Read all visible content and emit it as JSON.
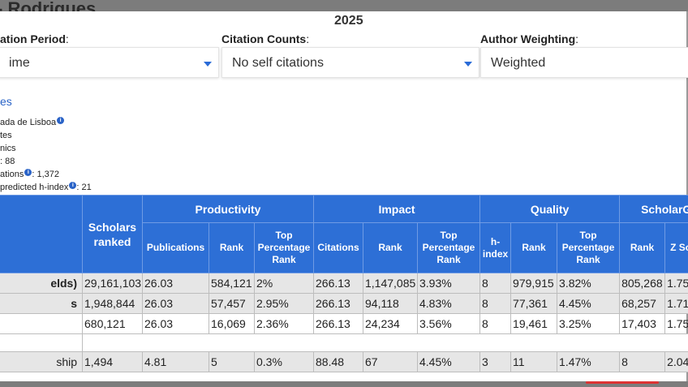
{
  "header": {
    "ghost_title": "- Rodrigues",
    "year": "2025"
  },
  "filters": [
    {
      "label": "ation Period",
      "value": "ime"
    },
    {
      "label": "Citation Counts",
      "value": "No self citations"
    },
    {
      "label": "Author Weighting",
      "value": "Weighted"
    }
  ],
  "info": {
    "link": "es",
    "institution": "ada de Lisboa",
    "country": "tes",
    "field": "nics",
    "hindex": ": 88",
    "citations_label": "ations",
    "citations_value": ": 1,372",
    "predicted_label": "predicted h-index",
    "predicted_value": ": 21"
  },
  "table": {
    "groups": [
      "Productivity",
      "Impact",
      "Quality",
      "ScholarG"
    ],
    "scholars_ranked": "Scholars ranked",
    "subheaders": [
      "Publications",
      "Rank",
      "Top Percentage Rank",
      "Citations",
      "Rank",
      "Top Percentage Rank",
      "h-index",
      "Rank",
      "Top Percentage Rank",
      "Rank",
      "Z Sc"
    ],
    "rows": [
      {
        "label": "elds)",
        "cells": [
          "29,161,103",
          "26.03",
          "584,121",
          "2%",
          "266.13",
          "1,147,085",
          "3.93%",
          "8",
          "979,915",
          "3.82%",
          "805,268",
          "1.75"
        ]
      },
      {
        "label": "s",
        "cells": [
          "1,948,844",
          "26.03",
          "57,457",
          "2.95%",
          "266.13",
          "94,118",
          "4.83%",
          "8",
          "77,361",
          "4.45%",
          "68,257",
          "1.71"
        ]
      },
      {
        "label": "",
        "cells": [
          "680,121",
          "26.03",
          "16,069",
          "2.36%",
          "266.13",
          "24,234",
          "3.56%",
          "8",
          "19,461",
          "3.25%",
          "17,403",
          "1.75"
        ]
      },
      {
        "label": "ship",
        "cells": [
          "1,494",
          "4.81",
          "5",
          "0.3%",
          "88.48",
          "67",
          "4.45%",
          "3",
          "11",
          "1.47%",
          "8",
          "2.04"
        ]
      }
    ]
  },
  "colors": {
    "header_blue": "#2d6fd6",
    "link_blue": "#2a63c7",
    "row_shade": "#e6e6e6"
  }
}
